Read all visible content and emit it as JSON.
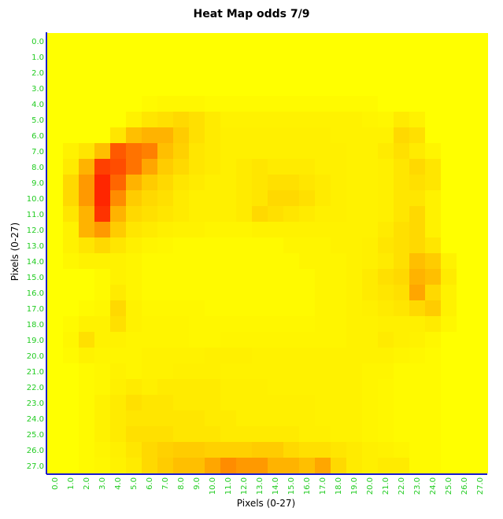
{
  "chart_data": {
    "type": "heatmap",
    "title": "Heat Map odds 7/9",
    "xlabel": "Pixels (0-27)",
    "ylabel": "Pixels (0-27)",
    "x_ticks": [
      "0.0",
      "1.0",
      "2.0",
      "3.0",
      "4.0",
      "5.0",
      "6.0",
      "7.0",
      "8.0",
      "9.0",
      "10.0",
      "11.0",
      "12.0",
      "13.0",
      "14.0",
      "15.0",
      "16.0",
      "17.0",
      "18.0",
      "19.0",
      "20.0",
      "21.0",
      "22.0",
      "23.0",
      "24.0",
      "25.0",
      "26.0",
      "27.0"
    ],
    "y_ticks": [
      "0.0",
      "1.0",
      "2.0",
      "3.0",
      "4.0",
      "5.0",
      "6.0",
      "7.0",
      "8.0",
      "9.0",
      "10.0",
      "11.0",
      "12.0",
      "13.0",
      "14.0",
      "15.0",
      "16.0",
      "17.0",
      "18.0",
      "19.0",
      "20.0",
      "21.0",
      "22.0",
      "23.0",
      "24.0",
      "25.0",
      "26.0",
      "27.0"
    ],
    "color_low": "#ffff00",
    "color_high": "#ff0000",
    "value_range": [
      0,
      1
    ],
    "values": [
      [
        0,
        0,
        0,
        0,
        0,
        0,
        0,
        0,
        0,
        0,
        0,
        0,
        0,
        0,
        0,
        0,
        0,
        0,
        0,
        0,
        0,
        0,
        0,
        0,
        0,
        0,
        0,
        0
      ],
      [
        0,
        0,
        0,
        0,
        0,
        0,
        0,
        0,
        0,
        0,
        0,
        0,
        0,
        0,
        0,
        0,
        0,
        0,
        0,
        0,
        0,
        0,
        0,
        0,
        0,
        0,
        0,
        0
      ],
      [
        0,
        0,
        0,
        0,
        0,
        0,
        0,
        0,
        0,
        0,
        0,
        0,
        0,
        0,
        0,
        0,
        0,
        0,
        0,
        0,
        0,
        0,
        0,
        0,
        0,
        0,
        0,
        0
      ],
      [
        0,
        0,
        0,
        0,
        0,
        0,
        0,
        0,
        0,
        0,
        0,
        0,
        0,
        0,
        0,
        0,
        0,
        0,
        0,
        0,
        0,
        0,
        0,
        0,
        0,
        0,
        0,
        0
      ],
      [
        0,
        0,
        0,
        0,
        0,
        0,
        0.02,
        0.03,
        0.03,
        0.03,
        0.02,
        0.02,
        0.02,
        0.02,
        0.02,
        0.02,
        0.02,
        0.02,
        0.02,
        0.02,
        0.02,
        0,
        0,
        0,
        0,
        0,
        0,
        0
      ],
      [
        0,
        0,
        0,
        0,
        0,
        0.05,
        0.1,
        0.12,
        0.15,
        0.12,
        0.08,
        0.05,
        0.05,
        0.05,
        0.05,
        0.05,
        0.05,
        0.05,
        0.05,
        0.05,
        0.04,
        0.03,
        0.08,
        0.05,
        0,
        0,
        0,
        0
      ],
      [
        0,
        0,
        0,
        0,
        0.1,
        0.25,
        0.3,
        0.3,
        0.2,
        0.12,
        0.08,
        0.06,
        0.06,
        0.06,
        0.06,
        0.06,
        0.06,
        0.06,
        0.05,
        0.05,
        0.05,
        0.05,
        0.15,
        0.12,
        0,
        0,
        0,
        0
      ],
      [
        0,
        0.05,
        0.1,
        0.25,
        0.65,
        0.55,
        0.5,
        0.25,
        0.18,
        0.1,
        0.08,
        0.06,
        0.06,
        0.06,
        0.06,
        0.06,
        0.06,
        0.06,
        0.06,
        0.05,
        0.05,
        0.08,
        0.12,
        0.08,
        0.04,
        0,
        0,
        0
      ],
      [
        0,
        0.08,
        0.3,
        0.75,
        0.7,
        0.55,
        0.35,
        0.2,
        0.15,
        0.1,
        0.08,
        0.06,
        0.08,
        0.1,
        0.08,
        0.08,
        0.08,
        0.06,
        0.06,
        0.05,
        0.05,
        0.06,
        0.1,
        0.15,
        0.1,
        0,
        0,
        0
      ],
      [
        0,
        0.15,
        0.4,
        0.85,
        0.6,
        0.3,
        0.2,
        0.15,
        0.1,
        0.08,
        0.06,
        0.06,
        0.08,
        0.1,
        0.12,
        0.12,
        0.1,
        0.08,
        0.06,
        0.05,
        0.05,
        0.06,
        0.1,
        0.12,
        0.1,
        0,
        0,
        0
      ],
      [
        0,
        0.15,
        0.4,
        0.85,
        0.45,
        0.2,
        0.15,
        0.12,
        0.08,
        0.06,
        0.06,
        0.06,
        0.08,
        0.1,
        0.15,
        0.15,
        0.12,
        0.08,
        0.06,
        0.05,
        0.05,
        0.06,
        0.1,
        0.1,
        0.05,
        0,
        0,
        0
      ],
      [
        0,
        0.1,
        0.3,
        0.8,
        0.3,
        0.15,
        0.12,
        0.1,
        0.08,
        0.06,
        0.06,
        0.06,
        0.08,
        0.15,
        0.12,
        0.1,
        0.08,
        0.06,
        0.06,
        0.05,
        0.05,
        0.06,
        0.1,
        0.15,
        0.05,
        0,
        0,
        0
      ],
      [
        0,
        0.05,
        0.3,
        0.4,
        0.2,
        0.1,
        0.08,
        0.06,
        0.05,
        0.05,
        0.04,
        0.04,
        0.04,
        0.05,
        0.05,
        0.05,
        0.05,
        0.05,
        0.05,
        0.05,
        0.05,
        0.08,
        0.12,
        0.15,
        0.05,
        0,
        0,
        0
      ],
      [
        0,
        0.05,
        0.1,
        0.15,
        0.1,
        0.06,
        0.04,
        0.03,
        0.02,
        0.02,
        0.02,
        0.02,
        0.02,
        0.02,
        0.02,
        0.04,
        0.04,
        0.04,
        0.05,
        0.05,
        0.06,
        0.1,
        0.12,
        0.15,
        0.1,
        0,
        0,
        0
      ],
      [
        0,
        0.03,
        0.05,
        0.05,
        0.05,
        0.04,
        0.02,
        0.02,
        0.02,
        0.02,
        0.02,
        0.02,
        0.02,
        0.02,
        0.02,
        0.02,
        0.04,
        0.04,
        0.04,
        0.05,
        0.06,
        0.08,
        0.12,
        0.25,
        0.2,
        0.05,
        0,
        0
      ],
      [
        0,
        0,
        0,
        0.02,
        0.05,
        0.04,
        0.02,
        0.02,
        0.02,
        0.02,
        0.02,
        0.02,
        0.02,
        0.02,
        0.02,
        0.02,
        0.02,
        0.04,
        0.04,
        0.05,
        0.08,
        0.12,
        0.15,
        0.3,
        0.25,
        0.08,
        0,
        0
      ],
      [
        0,
        0,
        0,
        0.02,
        0.08,
        0.04,
        0.02,
        0.02,
        0.02,
        0.02,
        0.02,
        0.02,
        0.02,
        0.02,
        0.02,
        0.02,
        0.02,
        0.04,
        0.04,
        0.05,
        0.08,
        0.1,
        0.12,
        0.35,
        0.15,
        0.05,
        0,
        0
      ],
      [
        0,
        0,
        0.02,
        0.03,
        0.15,
        0.05,
        0.03,
        0.03,
        0.03,
        0.03,
        0.02,
        0.02,
        0.02,
        0.02,
        0.02,
        0.02,
        0.02,
        0.04,
        0.04,
        0.05,
        0.06,
        0.08,
        0.1,
        0.15,
        0.2,
        0.05,
        0,
        0
      ],
      [
        0,
        0.02,
        0.05,
        0.05,
        0.12,
        0.05,
        0.04,
        0.04,
        0.04,
        0.03,
        0.03,
        0.03,
        0.03,
        0.03,
        0.03,
        0.03,
        0.03,
        0.04,
        0.04,
        0.05,
        0.05,
        0.06,
        0.06,
        0.06,
        0.08,
        0.03,
        0,
        0
      ],
      [
        0,
        0.03,
        0.12,
        0.05,
        0.05,
        0.04,
        0.04,
        0.04,
        0.04,
        0.03,
        0.03,
        0.04,
        0.04,
        0.04,
        0.04,
        0.04,
        0.04,
        0.04,
        0.04,
        0.05,
        0.05,
        0.08,
        0.06,
        0.05,
        0.03,
        0,
        0,
        0
      ],
      [
        0,
        0.02,
        0.05,
        0.04,
        0.04,
        0.04,
        0.05,
        0.05,
        0.05,
        0.05,
        0.06,
        0.06,
        0.06,
        0.05,
        0.05,
        0.05,
        0.05,
        0.05,
        0.05,
        0.05,
        0.05,
        0.05,
        0.04,
        0.03,
        0.02,
        0,
        0,
        0
      ],
      [
        0,
        0,
        0.02,
        0.03,
        0.05,
        0.04,
        0.05,
        0.05,
        0.06,
        0.06,
        0.06,
        0.05,
        0.05,
        0.05,
        0.05,
        0.05,
        0.05,
        0.05,
        0.05,
        0.05,
        0.04,
        0.04,
        0.02,
        0.02,
        0.02,
        0,
        0,
        0
      ],
      [
        0,
        0,
        0.02,
        0.03,
        0.06,
        0.08,
        0.06,
        0.08,
        0.08,
        0.08,
        0.08,
        0.06,
        0.06,
        0.06,
        0.05,
        0.05,
        0.05,
        0.05,
        0.05,
        0.05,
        0.04,
        0.03,
        0.02,
        0.02,
        0.02,
        0,
        0,
        0
      ],
      [
        0,
        0,
        0.02,
        0.05,
        0.08,
        0.12,
        0.1,
        0.1,
        0.08,
        0.08,
        0.08,
        0.06,
        0.06,
        0.06,
        0.06,
        0.06,
        0.06,
        0.05,
        0.05,
        0.05,
        0.04,
        0.03,
        0.02,
        0.02,
        0.02,
        0,
        0,
        0
      ],
      [
        0,
        0,
        0.02,
        0.05,
        0.08,
        0.1,
        0.1,
        0.1,
        0.1,
        0.1,
        0.08,
        0.08,
        0.06,
        0.06,
        0.06,
        0.06,
        0.06,
        0.05,
        0.05,
        0.05,
        0.04,
        0.03,
        0.02,
        0.02,
        0.02,
        0,
        0,
        0
      ],
      [
        0,
        0,
        0.02,
        0.05,
        0.08,
        0.12,
        0.12,
        0.12,
        0.1,
        0.1,
        0.1,
        0.08,
        0.08,
        0.08,
        0.08,
        0.08,
        0.06,
        0.06,
        0.05,
        0.05,
        0.04,
        0.03,
        0.02,
        0.02,
        0.02,
        0,
        0,
        0
      ],
      [
        0,
        0,
        0.02,
        0.04,
        0.06,
        0.1,
        0.15,
        0.18,
        0.2,
        0.2,
        0.18,
        0.18,
        0.18,
        0.2,
        0.2,
        0.15,
        0.12,
        0.12,
        0.1,
        0.08,
        0.06,
        0.05,
        0.04,
        0.02,
        0.02,
        0,
        0,
        0
      ],
      [
        0,
        0,
        0.02,
        0.03,
        0.05,
        0.08,
        0.15,
        0.2,
        0.25,
        0.25,
        0.35,
        0.45,
        0.4,
        0.4,
        0.3,
        0.3,
        0.25,
        0.35,
        0.15,
        0.08,
        0.06,
        0.08,
        0.08,
        0.02,
        0.02,
        0,
        0,
        0
      ]
    ]
  }
}
